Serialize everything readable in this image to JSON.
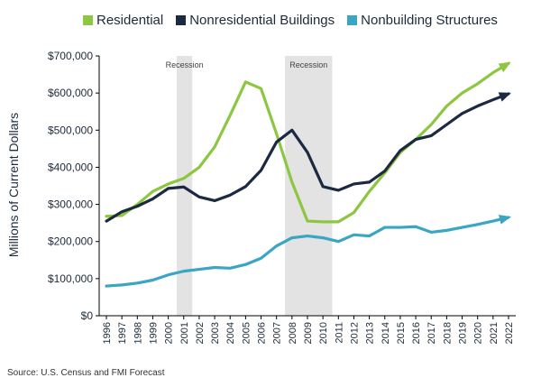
{
  "chart_data": {
    "type": "line",
    "title": "",
    "xlabel": "",
    "ylabel": "Millions of Current Dollars",
    "ylim": [
      0,
      700000
    ],
    "yticks": [
      0,
      100000,
      200000,
      300000,
      400000,
      500000,
      600000,
      700000
    ],
    "ytick_labels": [
      "$0",
      "$100,000",
      "$200,000",
      "$300,000",
      "$400,000",
      "$500,000",
      "$600,000",
      "$700,000"
    ],
    "x": [
      "1996",
      "1997",
      "1998",
      "1999",
      "2000",
      "2001",
      "2002",
      "2003",
      "2004",
      "2005",
      "2006",
      "2007",
      "2008",
      "2009",
      "2010",
      "2011",
      "2012",
      "2013",
      "2014",
      "2015",
      "2016",
      "2017",
      "2018",
      "2019",
      "2020",
      "2021",
      "2022"
    ],
    "series": [
      {
        "name": "Residential",
        "color": "#8dc63f",
        "values": [
          268000,
          270000,
          300000,
          335000,
          355000,
          370000,
          400000,
          455000,
          540000,
          630000,
          612000,
          490000,
          360000,
          255000,
          253000,
          253000,
          278000,
          335000,
          385000,
          440000,
          475000,
          515000,
          565000,
          600000,
          625000,
          655000,
          680000
        ]
      },
      {
        "name": "Nonresidential Buildings",
        "color": "#1b2a41",
        "values": [
          255000,
          280000,
          295000,
          315000,
          343000,
          347000,
          320000,
          310000,
          325000,
          348000,
          392000,
          468000,
          500000,
          440000,
          348000,
          338000,
          355000,
          360000,
          390000,
          445000,
          475000,
          485000,
          515000,
          545000,
          565000,
          582000,
          598000
        ]
      },
      {
        "name": "Nonbuilding Structures",
        "color": "#3ba5c4",
        "values": [
          80000,
          83000,
          88000,
          96000,
          110000,
          120000,
          125000,
          130000,
          128000,
          138000,
          155000,
          188000,
          210000,
          215000,
          210000,
          200000,
          218000,
          215000,
          238000,
          238000,
          240000,
          225000,
          230000,
          238000,
          246000,
          255000,
          265000
        ]
      }
    ],
    "shaded_regions": [
      {
        "label": "Recession",
        "start": 2000.55,
        "end": 2001.55
      },
      {
        "label": "Recession",
        "start": 2007.55,
        "end": 2010.6
      }
    ],
    "grid": false,
    "legend": "top"
  },
  "footer": {
    "source": "Source: U.S. Census and FMI Forecast"
  }
}
